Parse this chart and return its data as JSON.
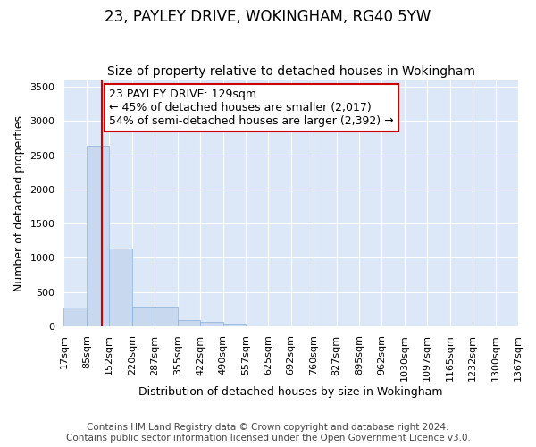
{
  "title": "23, PAYLEY DRIVE, WOKINGHAM, RG40 5YW",
  "subtitle": "Size of property relative to detached houses in Wokingham",
  "xlabel": "Distribution of detached houses by size in Wokingham",
  "ylabel": "Number of detached properties",
  "annotation_title": "23 PAYLEY DRIVE: 129sqm",
  "annotation_line1": "← 45% of detached houses are smaller (2,017)",
  "annotation_line2": "54% of semi-detached houses are larger (2,392) →",
  "footer_line1": "Contains HM Land Registry data © Crown copyright and database right 2024.",
  "footer_line2": "Contains public sector information licensed under the Open Government Licence v3.0.",
  "bin_edges": [
    17,
    85,
    152,
    220,
    287,
    355,
    422,
    490,
    557,
    625,
    692,
    760,
    827,
    895,
    962,
    1030,
    1097,
    1165,
    1232,
    1300,
    1367
  ],
  "bin_counts": [
    270,
    2640,
    1140,
    280,
    280,
    90,
    60,
    40,
    0,
    0,
    0,
    0,
    0,
    0,
    0,
    0,
    0,
    0,
    0,
    0
  ],
  "bar_color": "#c8d8ee",
  "bar_edge_color": "#8ab0d8",
  "vline_color": "#cc0000",
  "vline_x": 129,
  "ylim": [
    0,
    3600
  ],
  "yticks": [
    0,
    500,
    1000,
    1500,
    2000,
    2500,
    3000,
    3500
  ],
  "plot_bg_color": "#dce8f8",
  "fig_bg_color": "#ffffff",
  "grid_color": "#ffffff",
  "annotation_box_color": "#ffffff",
  "annotation_box_edge": "#cc0000",
  "title_fontsize": 12,
  "subtitle_fontsize": 10,
  "axis_label_fontsize": 9,
  "tick_fontsize": 8,
  "annotation_fontsize": 9,
  "footer_fontsize": 7.5
}
